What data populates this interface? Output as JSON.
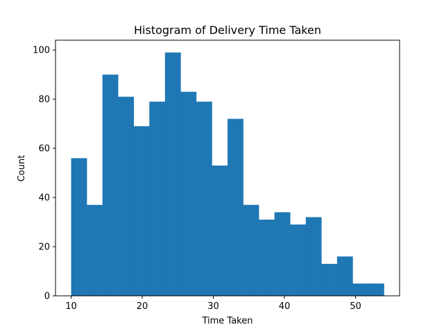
{
  "chart_data": {
    "type": "bar",
    "subtype": "histogram",
    "title": "Histogram of Delivery Time Taken",
    "xlabel": "Time Taken",
    "ylabel": "Count",
    "bin_edges": [
      10,
      12.2,
      14.4,
      16.6,
      18.8,
      21,
      23.2,
      25.4,
      27.6,
      29.8,
      32,
      34.2,
      36.4,
      38.6,
      40.8,
      43,
      45.2,
      47.4,
      49.6,
      51.8,
      54
    ],
    "values": [
      56,
      37,
      90,
      81,
      69,
      79,
      99,
      83,
      79,
      53,
      72,
      37,
      31,
      34,
      29,
      32,
      13,
      16,
      5,
      5
    ],
    "xlim": [
      7.8,
      56.2
    ],
    "ylim": [
      0,
      104.0
    ],
    "xticks": [
      10,
      20,
      30,
      40,
      50
    ],
    "yticks": [
      0,
      20,
      40,
      60,
      80,
      100
    ],
    "bar_color": "#1f77b4",
    "grid": false,
    "legend": "none"
  }
}
